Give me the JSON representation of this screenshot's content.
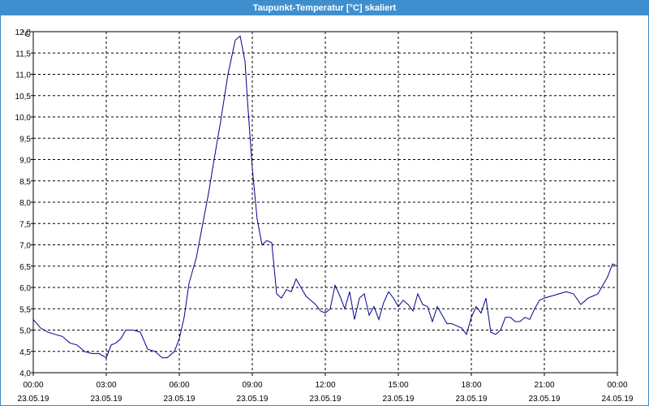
{
  "window": {
    "title": "Taupunkt-Temperatur [°C] skaliert"
  },
  "chart_data": {
    "type": "line",
    "title": "Taupunkt-Temperatur [°C] skaliert",
    "ylabel": "°C",
    "xlabel": "",
    "ylim": [
      4.0,
      12.0
    ],
    "xlim_hours": [
      0,
      24
    ],
    "grid": true,
    "y_ticks": [
      "4,0",
      "4,5",
      "5,0",
      "5,5",
      "6,0",
      "6,5",
      "7,0",
      "7,5",
      "8,0",
      "8,5",
      "9,0",
      "9,5",
      "10,0",
      "10,5",
      "11,0",
      "11,5",
      "12,0"
    ],
    "x_ticks": [
      {
        "time": "00:00",
        "date": "23.05.19"
      },
      {
        "time": "03:00",
        "date": "23.05.19"
      },
      {
        "time": "06:00",
        "date": "23.05.19"
      },
      {
        "time": "09:00",
        "date": "23.05.19"
      },
      {
        "time": "12:00",
        "date": "23.05.19"
      },
      {
        "time": "15:00",
        "date": "23.05.19"
      },
      {
        "time": "18:00",
        "date": "23.05.19"
      },
      {
        "time": "21:00",
        "date": "23.05.19"
      },
      {
        "time": "00:00",
        "date": "24.05.19"
      }
    ],
    "series": [
      {
        "color": "#00008b",
        "x": [
          0.0,
          0.3,
          0.6,
          0.9,
          1.2,
          1.5,
          1.8,
          2.1,
          2.4,
          2.7,
          3.0,
          3.2,
          3.4,
          3.6,
          3.8,
          4.1,
          4.4,
          4.7,
          5.0,
          5.3,
          5.5,
          5.8,
          6.0,
          6.2,
          6.4,
          6.7,
          7.0,
          7.2,
          7.4,
          7.7,
          8.0,
          8.3,
          8.5,
          8.7,
          8.8,
          9.0,
          9.2,
          9.4,
          9.6,
          9.8,
          10.0,
          10.2,
          10.4,
          10.6,
          10.8,
          11.0,
          11.2,
          11.4,
          11.6,
          11.8,
          12.0,
          12.2,
          12.4,
          12.6,
          12.8,
          13.0,
          13.2,
          13.4,
          13.6,
          13.8,
          14.0,
          14.2,
          14.4,
          14.6,
          14.8,
          15.0,
          15.2,
          15.4,
          15.6,
          15.8,
          16.0,
          16.2,
          16.4,
          16.6,
          16.8,
          17.0,
          17.2,
          17.4,
          17.6,
          17.8,
          18.0,
          18.2,
          18.4,
          18.6,
          18.8,
          19.0,
          19.2,
          19.4,
          19.6,
          19.8,
          20.0,
          20.2,
          20.4,
          20.6,
          20.8,
          21.0,
          21.3,
          21.6,
          21.9,
          22.2,
          22.5,
          22.8,
          23.0,
          23.2,
          23.4,
          23.6,
          23.8,
          24.0
        ],
        "y": [
          5.25,
          5.05,
          4.95,
          4.9,
          4.85,
          4.7,
          4.65,
          4.5,
          4.45,
          4.45,
          4.35,
          4.65,
          4.7,
          4.8,
          5.0,
          5.0,
          4.95,
          4.55,
          4.5,
          4.35,
          4.35,
          4.5,
          4.8,
          5.3,
          6.1,
          6.7,
          7.6,
          8.2,
          8.9,
          9.9,
          11.0,
          11.8,
          11.9,
          11.3,
          10.4,
          8.8,
          7.6,
          7.0,
          7.1,
          7.05,
          5.85,
          5.75,
          5.95,
          5.9,
          6.2,
          6.0,
          5.8,
          5.7,
          5.6,
          5.45,
          5.4,
          5.5,
          6.05,
          5.8,
          5.5,
          5.9,
          5.25,
          5.75,
          5.85,
          5.35,
          5.55,
          5.25,
          5.65,
          5.9,
          5.75,
          5.55,
          5.7,
          5.6,
          5.45,
          5.85,
          5.6,
          5.55,
          5.2,
          5.55,
          5.35,
          5.15,
          5.15,
          5.1,
          5.05,
          4.9,
          5.3,
          5.55,
          5.4,
          5.75,
          4.95,
          4.9,
          5.0,
          5.3,
          5.3,
          5.2,
          5.2,
          5.3,
          5.25,
          5.5,
          5.7,
          5.75,
          5.8,
          5.85,
          5.9,
          5.85,
          5.6,
          5.75,
          5.8,
          5.85,
          6.05,
          6.25,
          6.55,
          6.5
        ]
      }
    ]
  }
}
